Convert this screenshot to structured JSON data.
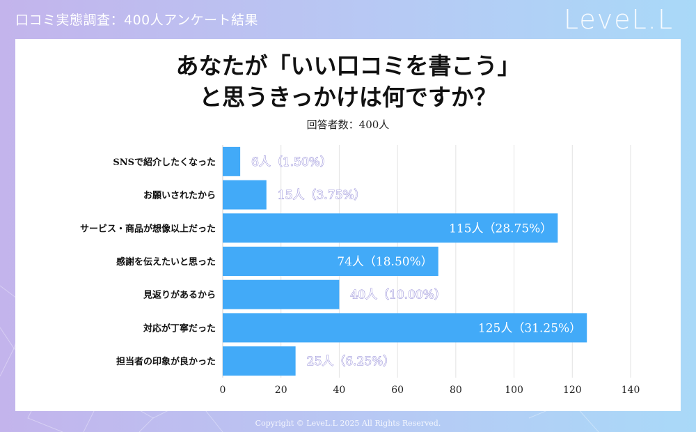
{
  "header": {
    "survey_title": "口コミ実態調査：400人アンケート結果",
    "brand": "LeveL.L"
  },
  "question": {
    "line1": "あなたが「いい口コミを書こう」",
    "line2": "と思うきっかけは何ですか？",
    "respondents": "回答者数：400人"
  },
  "footer": {
    "copyright": "Copyright © LeveL.L 2025 All Rights Reserved."
  },
  "colors": {
    "bar": "#42aaf8",
    "label_outside": "#8e86d6",
    "label_inside": "#ffffff"
  },
  "chart_data": {
    "type": "bar",
    "orientation": "horizontal",
    "categories": [
      "SNSで紹介したくなった",
      "お願いされたから",
      "サービス・商品が想像以上だった",
      "感謝を伝えたいと思った",
      "見返りがあるから",
      "対応が丁寧だった",
      "担当者の印象が良かった"
    ],
    "values": [
      6,
      15,
      115,
      74,
      40,
      125,
      25
    ],
    "data_labels": [
      "6人（1.50%）",
      "15人（3.75%）",
      "115人（28.75%）",
      "74人（18.50%）",
      "40人（10.00%）",
      "125人（31.25%）",
      "25人（6.25%）"
    ],
    "xlim": [
      0,
      140
    ],
    "xticks": [
      0,
      20,
      40,
      60,
      80,
      100,
      120,
      140
    ],
    "grid": true
  }
}
